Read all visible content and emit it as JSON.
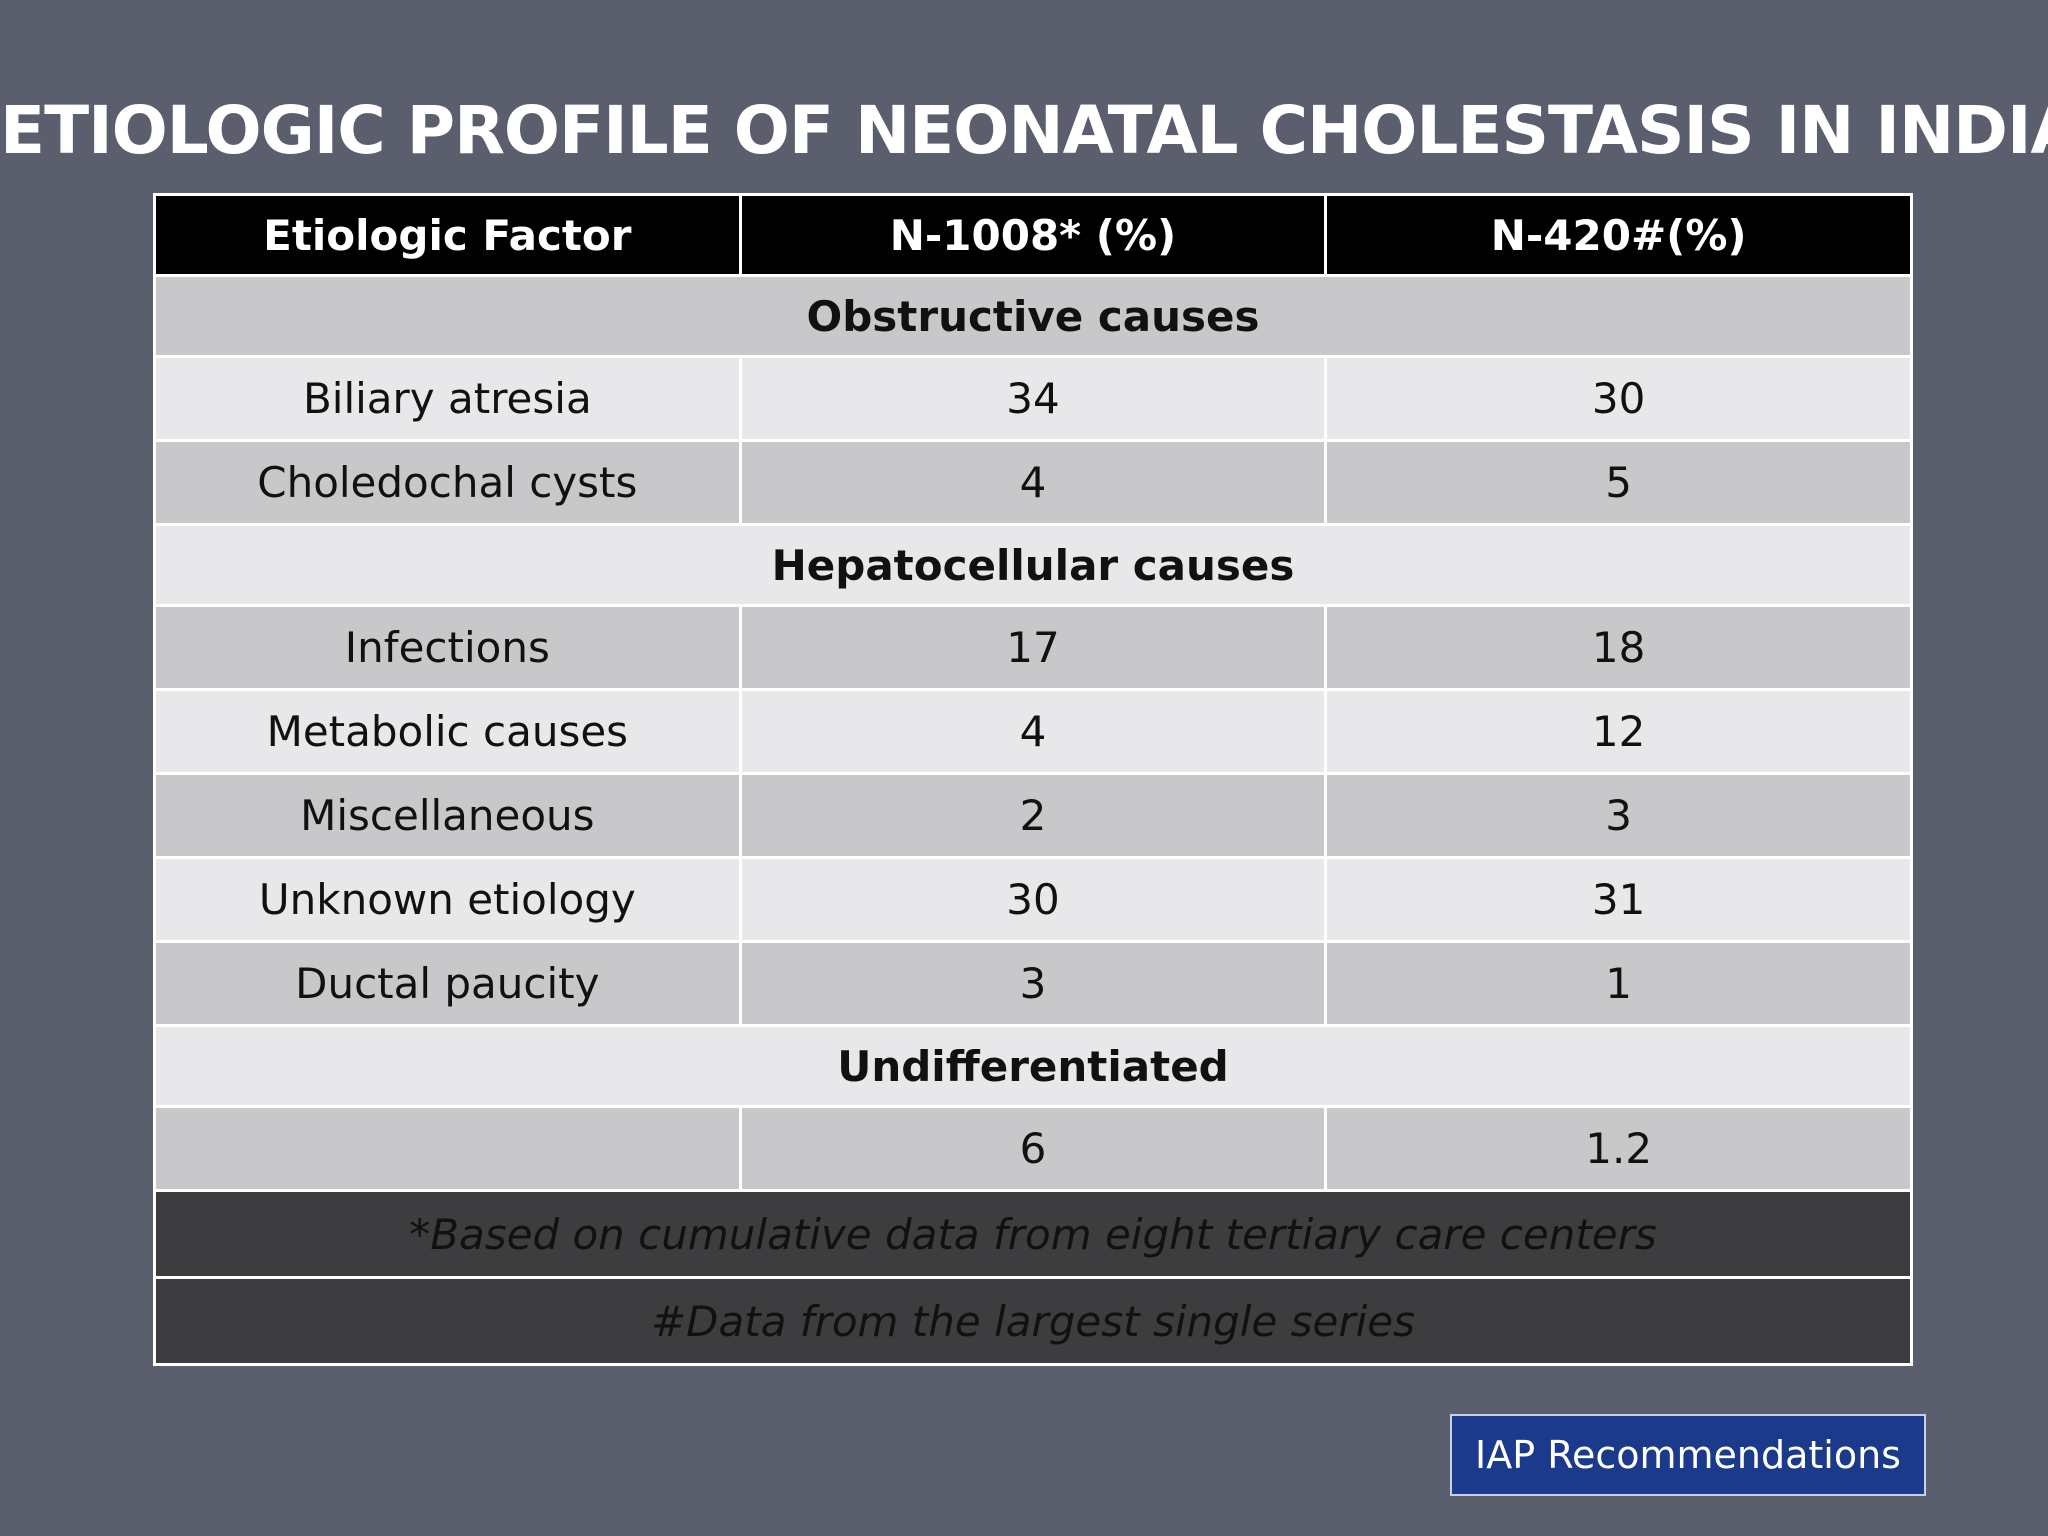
{
  "title": "ETIOLOGIC PROFILE OF NEONATAL CHOLESTASIS IN INDIA",
  "table": {
    "headers": [
      "Etiologic Factor",
      "N-1008* (%)",
      "N-420#(%)"
    ],
    "sections": [
      {
        "heading": "Obstructive causes"
      },
      {
        "heading": "Hepatocellular causes"
      },
      {
        "heading": "Undifferentiated"
      }
    ],
    "rows": [
      [
        "Biliary atresia",
        "34",
        "30"
      ],
      [
        "Choledochal cysts",
        "4",
        "5"
      ],
      [
        "Infections",
        "17",
        "18"
      ],
      [
        "Metabolic causes",
        "4",
        "12"
      ],
      [
        "Miscellaneous",
        "2",
        "3"
      ],
      [
        "Unknown etiology",
        "30",
        "31"
      ],
      [
        "Ductal paucity",
        "3",
        "1"
      ],
      [
        "",
        "6",
        "1.2"
      ]
    ],
    "footnotes": [
      "*Based on cumulative data from eight tertiary care centers",
      "#Data from the largest single series"
    ]
  },
  "badge": "IAP Recommendations",
  "colors": {
    "background": "#5a5e6d",
    "header_fill": "#000000",
    "row_light": "#e8e8ea",
    "row_dark": "#c8c8ca",
    "footnote_fill": "#3d3d40",
    "badge_fill": "#1c3a8c"
  }
}
